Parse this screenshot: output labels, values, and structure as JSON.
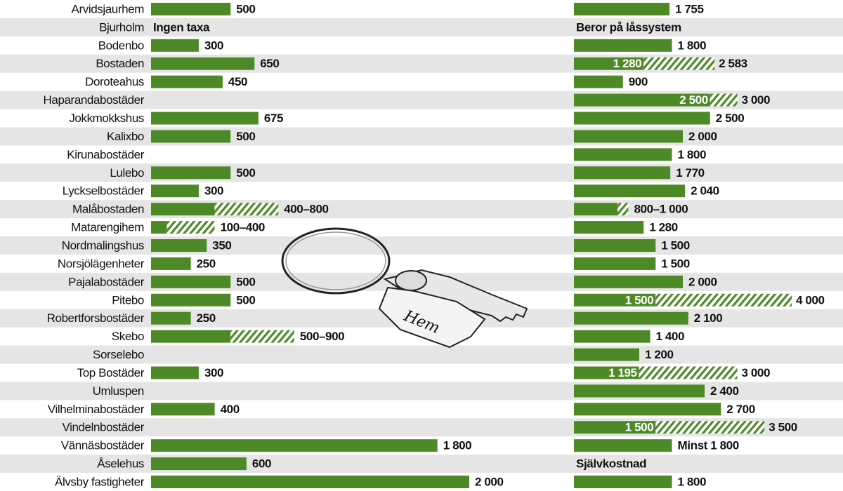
{
  "chart_data": [
    {
      "type": "bar",
      "categories": [
        "Arvidsjaurhem",
        "Bjurholm",
        "Bodenbo",
        "Bostaden",
        "Doroteahus",
        "Haparandabostäder",
        "Jokkmokkshus",
        "Kalixbo",
        "Kirunabostäder",
        "Lulebo",
        "Lyckselbostäder",
        "Malåbostaden",
        "Matarengihem",
        "Nordmalingshus",
        "Norsjölägenheter",
        "Pajalabostäder",
        "Pitebo",
        "Robertforsbostäder",
        "Skebo",
        "Sorselebo",
        "Top Bostäder",
        "Umluspen",
        "Vilhelminabostäder",
        "Vindelnbostäder",
        "Vännäsbostäder",
        "Åselehus",
        "Älvsby fastigheter"
      ],
      "values": [
        500,
        null,
        300,
        650,
        450,
        null,
        675,
        500,
        null,
        500,
        300,
        400,
        100,
        350,
        250,
        500,
        500,
        250,
        500,
        null,
        300,
        null,
        400,
        null,
        1800,
        600,
        2000
      ],
      "highs": [
        null,
        null,
        null,
        null,
        null,
        null,
        null,
        null,
        null,
        null,
        null,
        800,
        400,
        null,
        null,
        null,
        null,
        null,
        900,
        null,
        null,
        null,
        null,
        null,
        null,
        null,
        null
      ],
      "value_labels": [
        "500",
        "Ingen taxa",
        "300",
        "650",
        "450",
        null,
        "675",
        "500",
        null,
        "500",
        "300",
        "400–800",
        "100–400",
        "350",
        "250",
        "500",
        "500",
        "250",
        "500–900",
        null,
        "300",
        null,
        "400",
        null,
        "1 800",
        "600",
        "2 000"
      ],
      "color": "#4d8a27",
      "annotation": "Hem"
    },
    {
      "type": "bar",
      "values": [
        1755,
        null,
        1800,
        1280,
        900,
        2500,
        2500,
        2000,
        1800,
        1770,
        2040,
        800,
        1280,
        1500,
        1500,
        2000,
        1500,
        2100,
        1400,
        1200,
        1195,
        2400,
        2700,
        1500,
        1800,
        null,
        1800
      ],
      "highs": [
        null,
        null,
        null,
        2583,
        null,
        3000,
        null,
        null,
        null,
        null,
        null,
        1000,
        null,
        null,
        null,
        null,
        4000,
        null,
        null,
        null,
        3000,
        null,
        null,
        3500,
        null,
        null,
        null
      ],
      "value_labels": [
        "1 755",
        "Beror på låssystem",
        "1 800",
        "1 280",
        "900",
        "2 500",
        "2 500",
        "2 000",
        "1 800",
        "1 770",
        "2 040",
        "800–1 000",
        "1 280",
        "1 500",
        "1 500",
        "2 000",
        "1 500",
        "2 100",
        "1 400",
        "1 200",
        "1 195",
        "2 400",
        "2 700",
        "1 500",
        "Minst 1 800",
        "Självkostnad",
        "1 800"
      ],
      "high_labels": [
        null,
        null,
        null,
        "2 583",
        null,
        "3 000",
        null,
        null,
        null,
        null,
        null,
        null,
        null,
        null,
        null,
        null,
        "4 000",
        null,
        null,
        null,
        "3 000",
        null,
        null,
        "3 500",
        null,
        null,
        null
      ],
      "color": "#4d8a27"
    }
  ]
}
